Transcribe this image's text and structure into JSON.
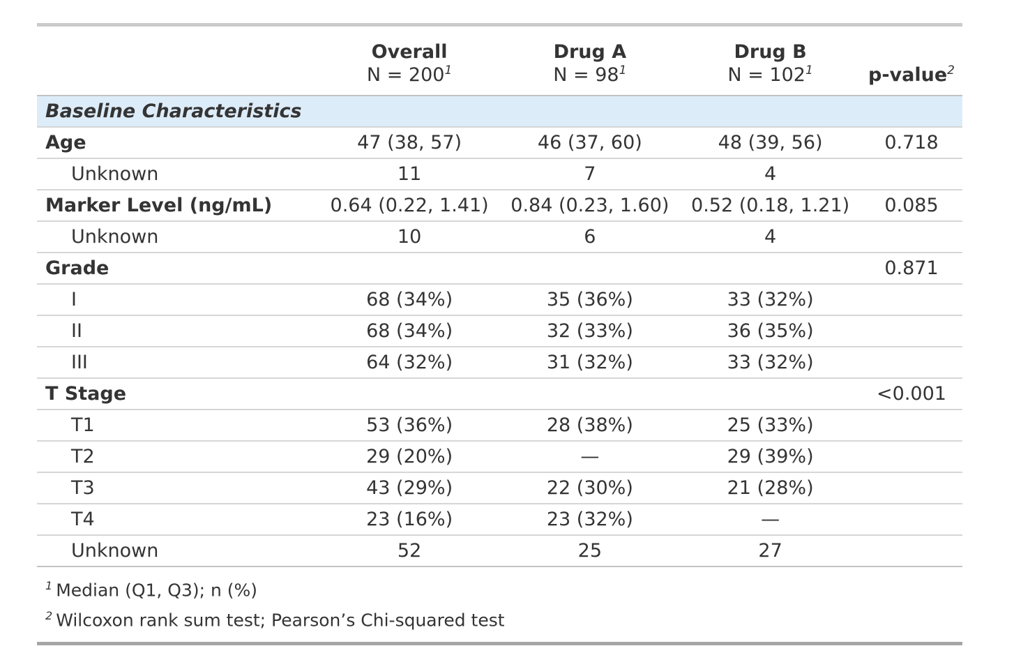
{
  "chart_data": {
    "type": "table",
    "header": {
      "columns": [
        {
          "title": "",
          "subtitle": "",
          "footnote_mark": ""
        },
        {
          "title": "Overall",
          "subtitle": "N = 200",
          "footnote_mark": "1"
        },
        {
          "title": "Drug A",
          "subtitle": "N = 98",
          "footnote_mark": "1"
        },
        {
          "title": "Drug B",
          "subtitle": "N = 102",
          "footnote_mark": "1"
        },
        {
          "title": "p-value",
          "subtitle": "",
          "footnote_mark": "2"
        }
      ]
    },
    "section_row": {
      "label": "Baseline Characteristics"
    },
    "rows": [
      {
        "label": "Age",
        "cells": [
          "47 (38, 57)",
          "46 (37, 60)",
          "48 (39, 56)",
          "0.718"
        ]
      },
      {
        "label": "Unknown",
        "cells": [
          "11",
          "7",
          "4",
          ""
        ]
      },
      {
        "label": "Marker Level (ng/mL)",
        "cells": [
          "0.64 (0.22, 1.41)",
          "0.84 (0.23, 1.60)",
          "0.52 (0.18, 1.21)",
          "0.085"
        ]
      },
      {
        "label": "Unknown",
        "cells": [
          "10",
          "6",
          "4",
          ""
        ]
      },
      {
        "label": "Grade",
        "cells": [
          "",
          "",
          "",
          "0.871"
        ]
      },
      {
        "label": "I",
        "cells": [
          "68 (34%)",
          "35 (36%)",
          "33 (32%)",
          ""
        ]
      },
      {
        "label": "II",
        "cells": [
          "68 (34%)",
          "32 (33%)",
          "36 (35%)",
          ""
        ]
      },
      {
        "label": "III",
        "cells": [
          "64 (32%)",
          "31 (32%)",
          "33 (32%)",
          ""
        ]
      },
      {
        "label": "T Stage",
        "cells": [
          "",
          "",
          "",
          "<0.001"
        ]
      },
      {
        "label": "T1",
        "cells": [
          "53 (36%)",
          "28 (38%)",
          "25 (33%)",
          ""
        ]
      },
      {
        "label": "T2",
        "cells": [
          "29 (20%)",
          "—",
          "29 (39%)",
          ""
        ]
      },
      {
        "label": "T3",
        "cells": [
          "43 (29%)",
          "22 (30%)",
          "21 (28%)",
          ""
        ]
      },
      {
        "label": "T4",
        "cells": [
          "23 (16%)",
          "23 (32%)",
          "—",
          ""
        ]
      },
      {
        "label": "Unknown",
        "cells": [
          "52",
          "25",
          "27",
          ""
        ]
      }
    ],
    "footnotes": [
      {
        "mark": "1",
        "text": "Median (Q1, Q3); n (%)"
      },
      {
        "mark": "2",
        "text": "Wilcoxon rank sum test; Pearson’s Chi-squared test"
      }
    ],
    "colors": {
      "section_row_bg": "#ddecf9",
      "text": "#343434",
      "row_border": "#d6d6d6",
      "strong_border": "#c2c2c2",
      "top_bar": "#cbcbcb",
      "bottom_bar": "#a5a5a5"
    },
    "layout_hints": {
      "grid": "horizontal-row-borders-only",
      "section_header_style": "bold-italic-highlighted"
    }
  }
}
